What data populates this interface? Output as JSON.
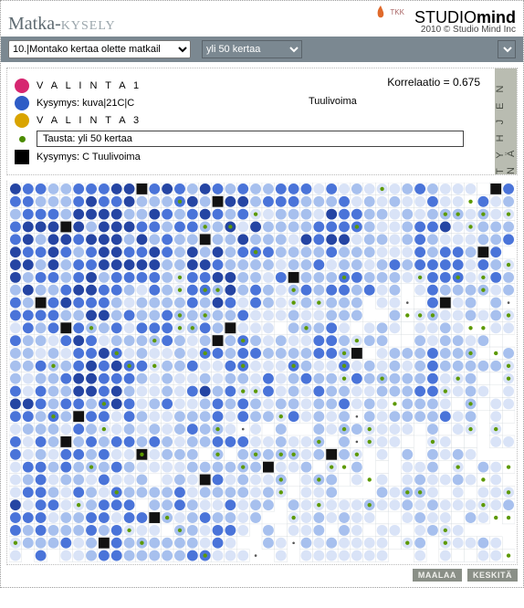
{
  "header": {
    "title_main": "Matka-",
    "title_sub": "KYSELY",
    "brand_light": "STUDIO",
    "brand_bold": "mind",
    "brand_sub": "2010 © Studio Mind Inc",
    "tkk_label": "TKK"
  },
  "selectors": {
    "sel1_value": "10.|Montako kertaa olette matkail",
    "sel2_value": "yli 50 kertaa"
  },
  "legend": {
    "correlation_label": "Korrelaatio = 0.675",
    "mid_label": "Tuulivoima",
    "valinta1_label": "V A L I N T A 1",
    "valinta1_color": "#d62670",
    "kysymys_kuva_label": "Kysymys: kuva|21C|C",
    "kysymys_kuva_color": "#2e5cc6",
    "valinta3_label": "V A L I N T A 3",
    "valinta3_color": "#d9a400",
    "tausta_label": "Tausta: yli 50 kertaa",
    "tausta_dot_color": "#4b8b00",
    "kysymys_c_label": "Kysymys: C Tuulivoima",
    "kysymys_c_color": "#000000",
    "tyhjenna_label": "T Y H J E N N Ä"
  },
  "footer": {
    "btn1": "MAALAA",
    "btn2": "KESKITÄ"
  },
  "grid": {
    "type": "heatmap-grid",
    "cols": 40,
    "rows": 30,
    "cell_size": 14,
    "background_color": "#ffffff",
    "palette": {
      "dark": "#2545a3",
      "mid": "#4a74d9",
      "light": "#a7c0ee",
      "pale": "#d9e3f7",
      "empty": "#ffffff",
      "black": "#121212"
    },
    "green_dot_color": "#5c9900",
    "cell_border_color": "#c9d0d6",
    "circle_radius": 6,
    "green_dot_radius": 2.2
  }
}
